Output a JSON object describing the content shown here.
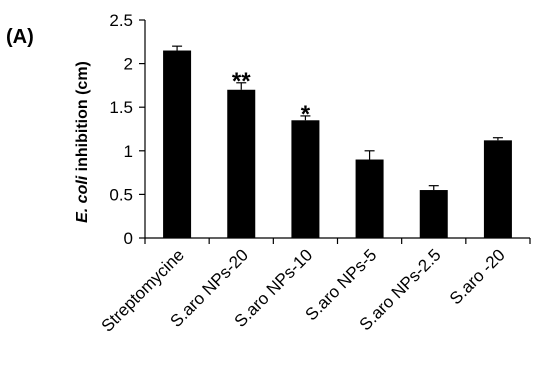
{
  "chart_data": {
    "type": "bar",
    "panel_label": "(A)",
    "title": "",
    "xlabel": "",
    "ylabel_italic": "E. coli",
    "ylabel_rest": " inhibition (cm)",
    "ylim": [
      0,
      2.5
    ],
    "yticks": [
      "0",
      "0.5",
      "1",
      "1.5",
      "2",
      "2.5"
    ],
    "ytick_values": [
      0,
      0.5,
      1,
      1.5,
      2,
      2.5
    ],
    "categories": [
      "Streptomycine",
      "S.aro NPs-20",
      "S.aro NPs-10",
      "S.aro NPs-5",
      "S.aro NPs-2.5",
      "S.aro -20"
    ],
    "values": [
      2.15,
      1.7,
      1.35,
      0.9,
      0.55,
      1.12
    ],
    "errors": [
      0.05,
      0.08,
      0.05,
      0.1,
      0.05,
      0.03
    ],
    "significance": [
      "",
      "**",
      "*",
      "",
      "",
      ""
    ],
    "bar_color": "#000000",
    "axis_color": "#000000",
    "grid": false,
    "legend": "none"
  }
}
